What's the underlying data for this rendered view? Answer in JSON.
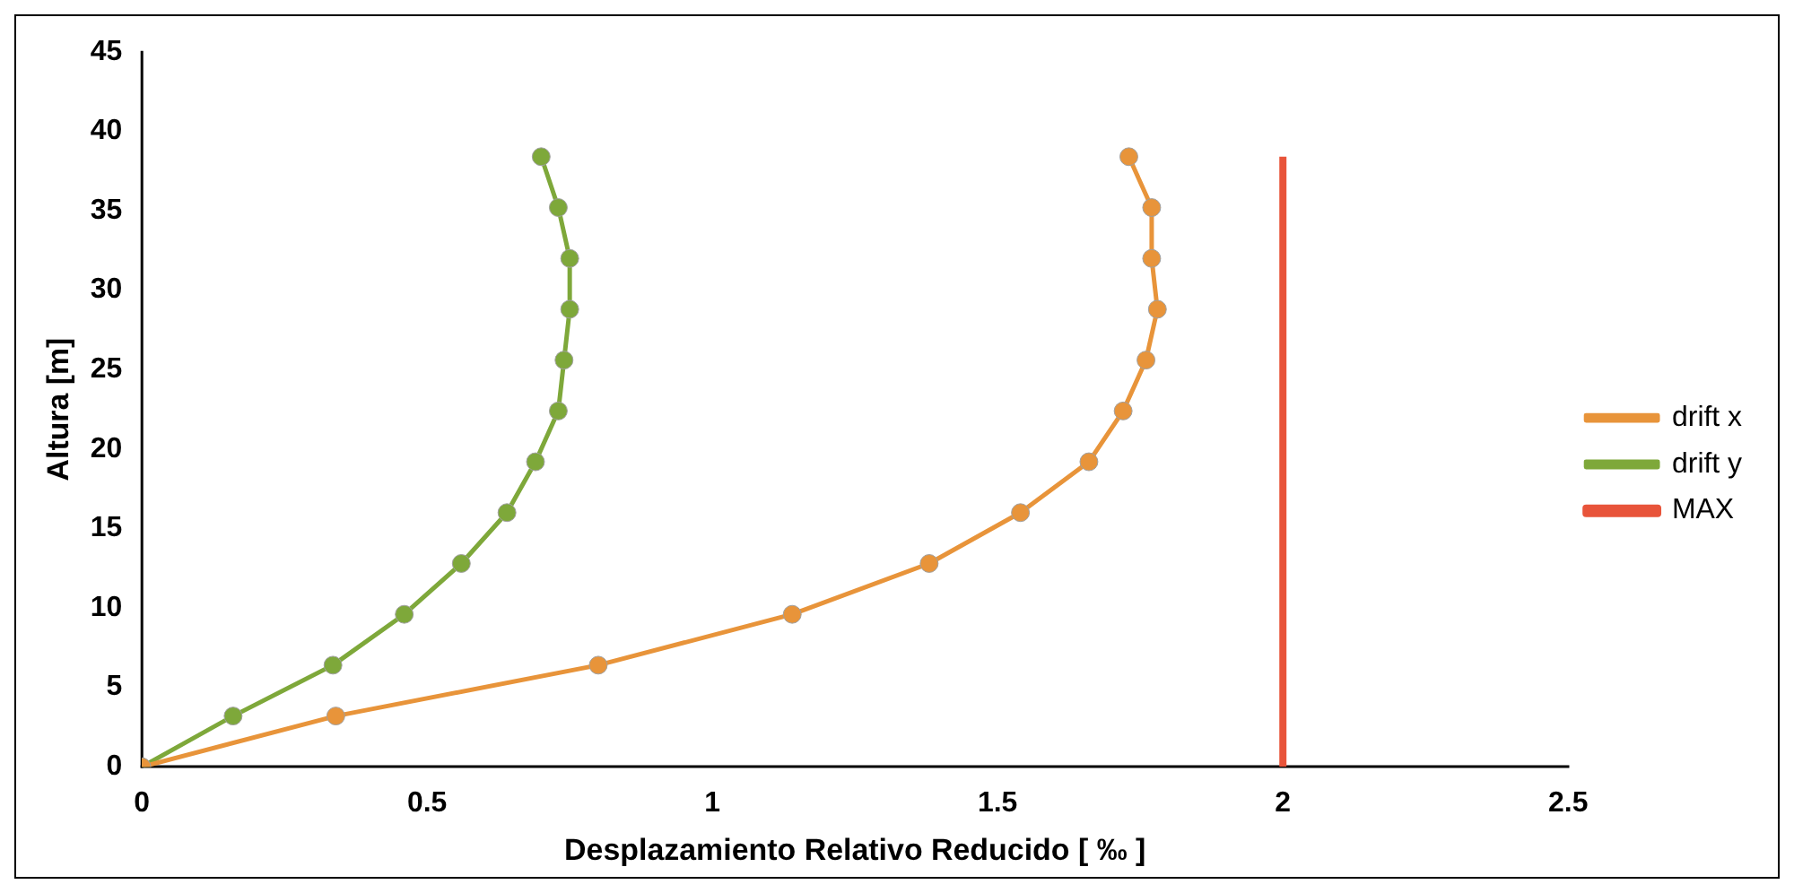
{
  "chart_data": {
    "type": "line",
    "xlabel": "Desplazamiento Relativo Reducido [ ‰ ]",
    "ylabel": "Altura [m]",
    "xlim": [
      0,
      2.5
    ],
    "xticks": [
      0,
      0.5,
      1,
      1.5,
      2,
      2.5
    ],
    "ylim": [
      0,
      45
    ],
    "yticks": [
      0,
      5,
      10,
      15,
      20,
      25,
      30,
      35,
      40,
      45
    ],
    "grid": false,
    "legend": "right",
    "series": [
      {
        "name": "drift x",
        "color": "#e8943a",
        "marker": "circle",
        "x": [
          0,
          0.34,
          0.8,
          1.14,
          1.38,
          1.54,
          1.66,
          1.72,
          1.76,
          1.78,
          1.77,
          1.77,
          1.73
        ],
        "values": [
          0,
          3.2,
          6.4,
          9.6,
          12.8,
          16,
          19.2,
          22.4,
          25.6,
          28.8,
          32,
          35.2,
          38.4
        ]
      },
      {
        "name": "drift y",
        "color": "#7ea83a",
        "marker": "circle",
        "x": [
          0,
          0.16,
          0.335,
          0.46,
          0.56,
          0.64,
          0.69,
          0.73,
          0.74,
          0.75,
          0.75,
          0.73,
          0.7
        ],
        "values": [
          0,
          3.2,
          6.4,
          9.6,
          12.8,
          16,
          19.2,
          22.4,
          25.6,
          28.8,
          32,
          35.2,
          38.4
        ]
      },
      {
        "name": "MAX",
        "color": "#e8543a",
        "marker": "none",
        "x": [
          2,
          2
        ],
        "values": [
          0,
          38.4
        ]
      }
    ]
  }
}
